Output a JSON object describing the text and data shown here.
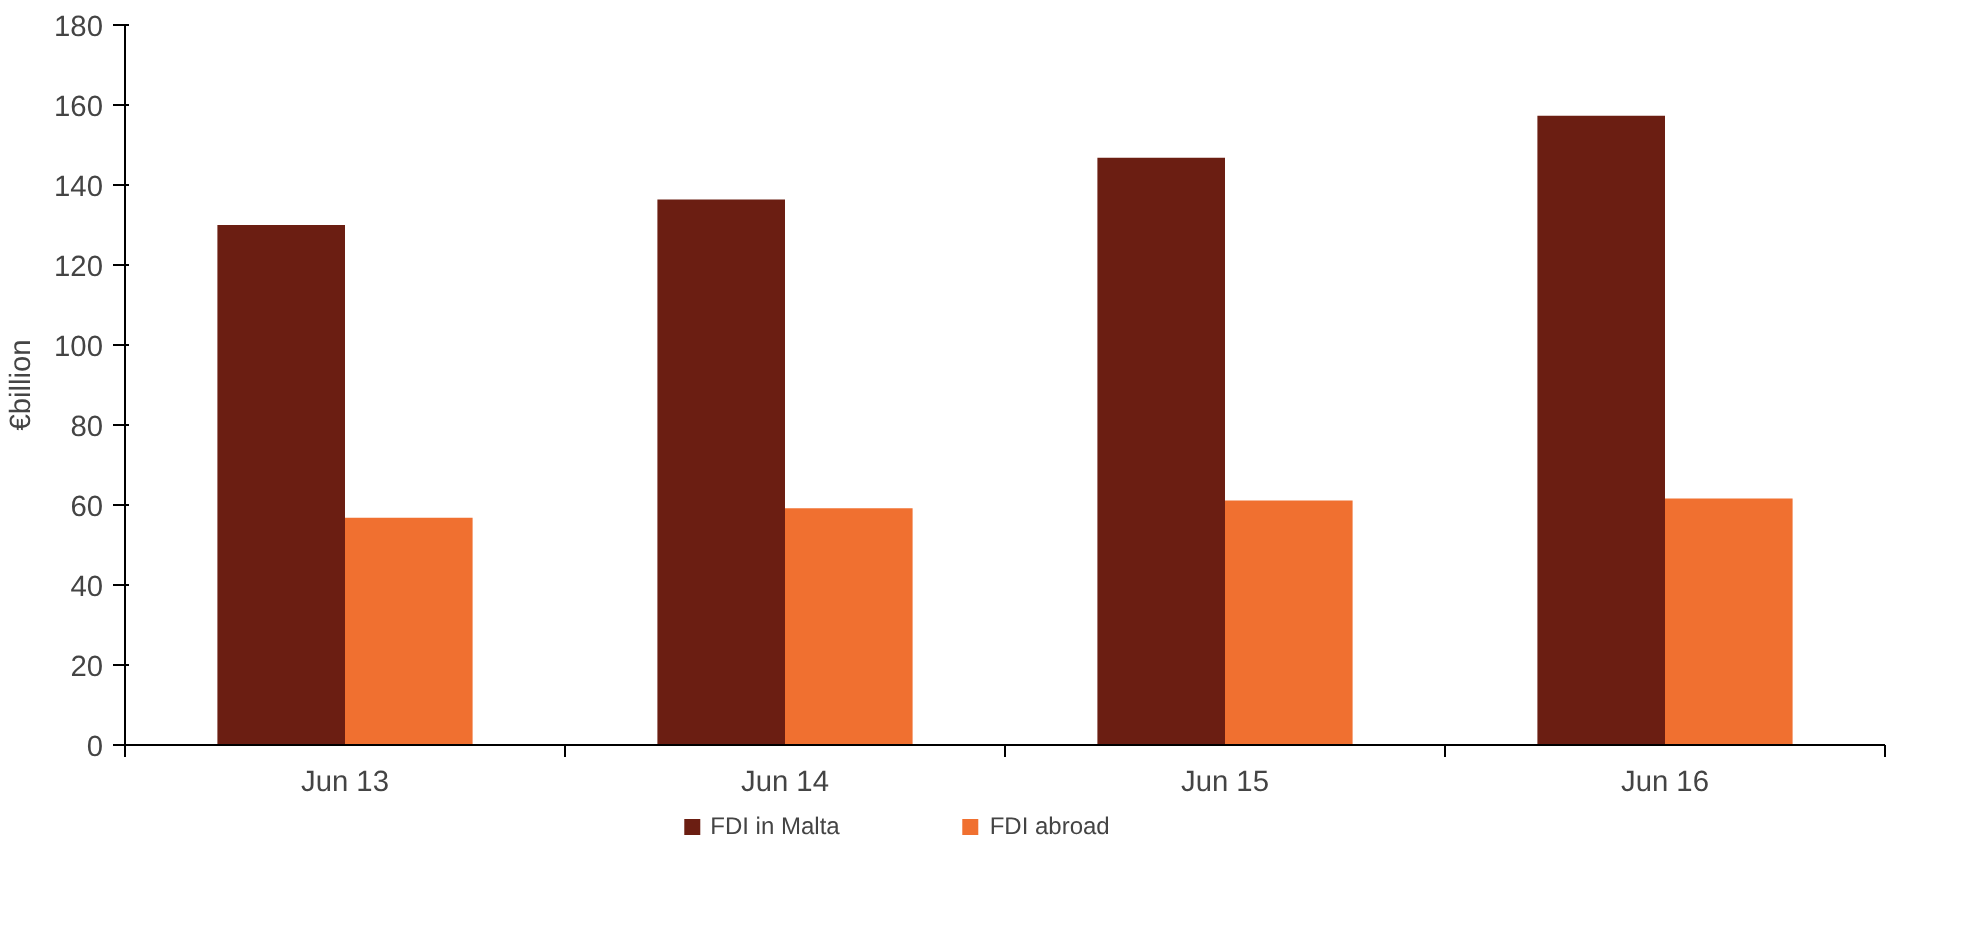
{
  "chart_data": {
    "type": "bar",
    "ylabel": "€billion",
    "categories": [
      "Jun 13",
      "Jun 14",
      "Jun 15",
      "Jun 16"
    ],
    "series": [
      {
        "name": "FDI in Malta",
        "color": "#6b1e12",
        "values": [
          130,
          136.4,
          146.8,
          157.3
        ]
      },
      {
        "name": "FDI abroad",
        "color": "#f07030",
        "values": [
          56.8,
          59.2,
          61.1,
          61.6
        ]
      }
    ],
    "ylim": [
      0,
      180
    ],
    "yticks": [
      0,
      20,
      40,
      60,
      80,
      100,
      120,
      140,
      160,
      180
    ],
    "grid": false,
    "legend": "bottom"
  }
}
